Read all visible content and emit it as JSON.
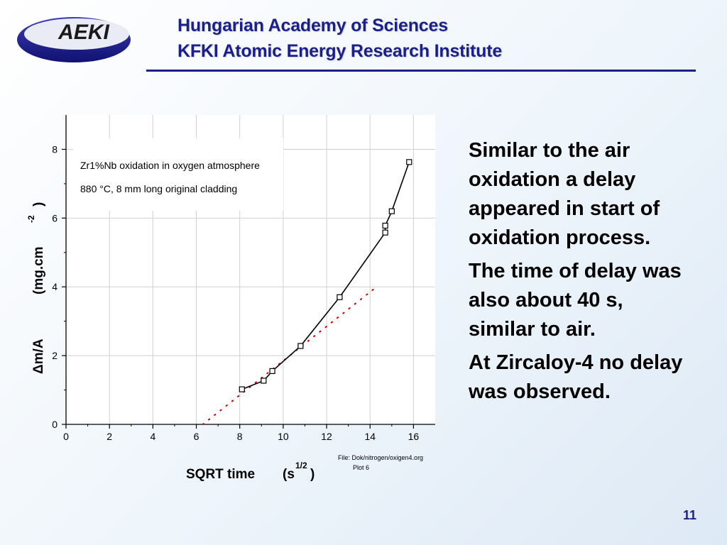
{
  "logo": {
    "text": "AEKI"
  },
  "header": {
    "line1": "Hungarian Academy of Sciences",
    "line2": "KFKI Atomic Energy Research Institute"
  },
  "chart_data": {
    "type": "scatter",
    "title": "",
    "legend_text": [
      "Zr1%Nb  oxidation in oxygen atmosphere",
      "880 °C, 8 mm long original cladding"
    ],
    "legend_placement": "top-left",
    "xlabel": "SQRT time",
    "xunit_base": "(s",
    "xunit_exp": "1/2",
    "xunit_close": ")",
    "ylabel": "Δm/A",
    "yunit": "(mg.cm",
    "yunit_exp": "-2",
    "yunit_close": ")",
    "xlim": [
      0,
      17
    ],
    "ylim": [
      0,
      9
    ],
    "xticks": [
      "0",
      "2",
      "4",
      "6",
      "8",
      "10",
      "12",
      "14",
      "16"
    ],
    "yticks": [
      "0",
      "2",
      "4",
      "6",
      "8"
    ],
    "grid": true,
    "series": [
      {
        "style": "markers-with-line",
        "marker": "open-square",
        "x": [
          8.1,
          9.1,
          9.5,
          10.8,
          12.6,
          14.7,
          14.7,
          15.0,
          15.8
        ],
        "y": [
          1.02,
          1.27,
          1.55,
          2.28,
          3.7,
          5.58,
          5.78,
          6.2,
          7.63
        ]
      },
      {
        "style": "dotted-fit",
        "color": "#cc0000",
        "x": [
          6.3,
          14.3
        ],
        "y": [
          0,
          4.0
        ]
      }
    ],
    "file_note": "File: Dok/nitrogen/oxigen4.org",
    "plot_note": "Plot  6"
  },
  "bullets": [
    "Similar to the air oxidation a delay appeared in start of oxidation process.",
    "The time of delay was also about 40 s, similar to air.",
    "At Zircaloy-4 no delay was observed."
  ],
  "page_number": "11",
  "colors": {
    "header_blue": "#1a1f8c",
    "fit_red": "#cc0000"
  }
}
